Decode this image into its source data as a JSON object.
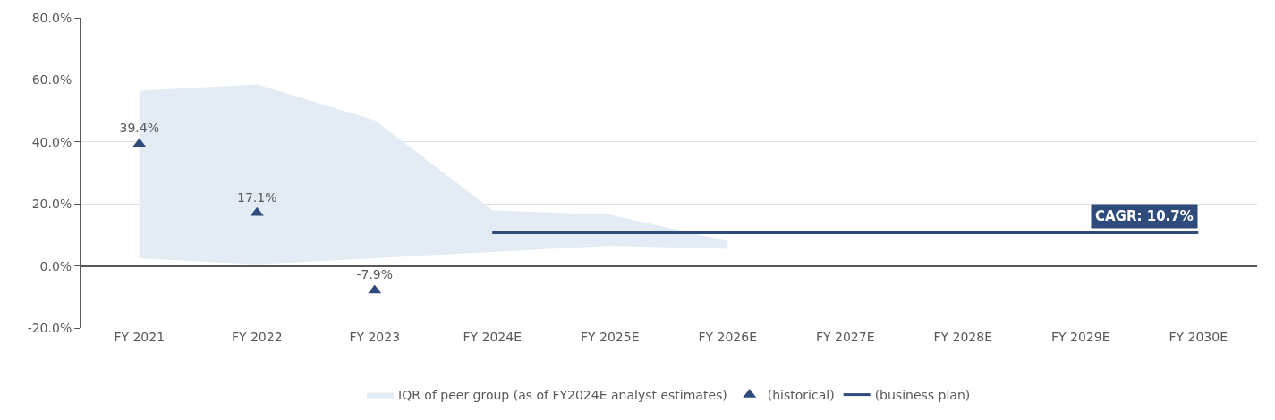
{
  "chart_data": {
    "type": "line",
    "categories": [
      "FY 2021",
      "FY 2022",
      "FY 2023",
      "FY 2024E",
      "FY 2025E",
      "FY 2026E",
      "FY 2027E",
      "FY 2028E",
      "FY 2029E",
      "FY 2030E"
    ],
    "series": [
      {
        "name": "IQR of peer group (as of FY2024E analyst estimates)",
        "type": "area",
        "color": "#e3ecf4",
        "lower": [
          2.5,
          0.5,
          2.5,
          4.5,
          6.5,
          5.5,
          null,
          null,
          null,
          null
        ],
        "upper": [
          56.5,
          58.5,
          47,
          18,
          16.5,
          8,
          null,
          null,
          null,
          null
        ],
        "values": [
          null,
          null,
          null,
          null,
          null,
          null,
          null,
          null,
          null,
          null
        ]
      },
      {
        "name": "(historical)",
        "type": "scatter",
        "marker": "triangle",
        "color": "#2f4b7c",
        "values": [
          39.4,
          17.1,
          -7.9,
          null,
          null,
          null,
          null,
          null,
          null,
          null
        ],
        "value_labels": [
          "39.4%",
          "17.1%",
          "-7.9%",
          null,
          null,
          null,
          null,
          null,
          null,
          null
        ]
      },
      {
        "name": "(business plan)",
        "color": "#2f4b7c",
        "marker": "none",
        "values": [
          null,
          null,
          null,
          10.7,
          10.7,
          10.7,
          10.7,
          10.7,
          10.7,
          10.7
        ]
      }
    ],
    "annotations": [
      {
        "text": "CAGR: 10.7%",
        "x": "FY 2030E",
        "y": 10.7
      }
    ],
    "ylim": [
      -20,
      80
    ],
    "yticks": [
      {
        "value": -20,
        "label": "-20.0%"
      },
      {
        "value": 0,
        "label": "0.0%"
      },
      {
        "value": 20,
        "label": "20.0%"
      },
      {
        "value": 40,
        "label": "40.0%"
      },
      {
        "value": 60,
        "label": "60.0%"
      },
      {
        "value": 80,
        "label": "80.0%"
      }
    ],
    "grid": "y",
    "legend": "bottom"
  }
}
